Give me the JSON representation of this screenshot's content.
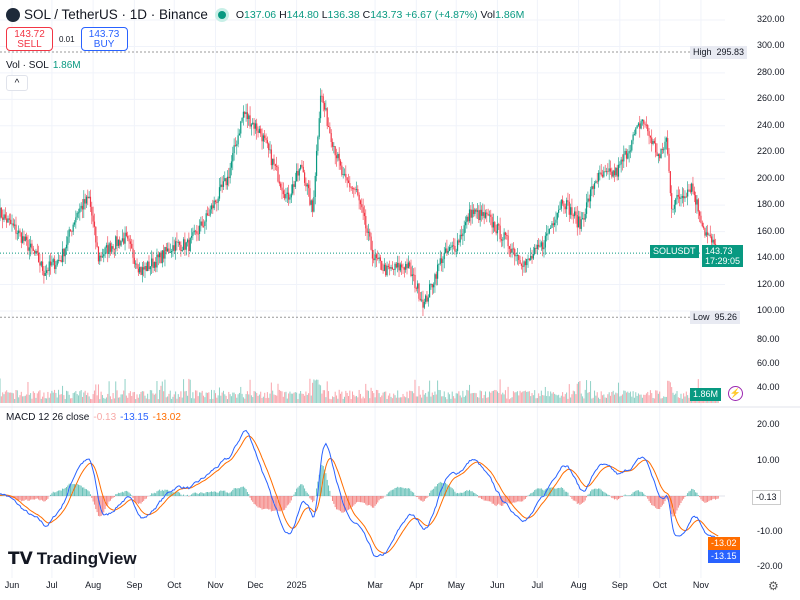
{
  "header": {
    "symbol": "SOL / TetherUS · 1D · Binance",
    "open_label": "O",
    "open": "137.06",
    "high_label": "H",
    "high": "144.80",
    "low_label": "L",
    "low": "136.38",
    "close_label": "C",
    "close": "143.73",
    "change": "+6.67 (+4.87%)",
    "vol_label": "Vol",
    "vol": "1.86M"
  },
  "trade": {
    "sell_price": "143.72",
    "sell_label": "SELL",
    "spread": "0.01",
    "buy_price": "143.73",
    "buy_label": "BUY"
  },
  "volume": {
    "label": "Vol · SOL",
    "value": "1.86M",
    "badge": "1.86M"
  },
  "macd": {
    "label": "MACD 12 26 close",
    "hist": "-0.13",
    "macd": "-13.15",
    "signal": "-13.02"
  },
  "price_tags": {
    "high_label": "High",
    "high": "295.83",
    "low_label": "Low",
    "low": "95.26",
    "symbol": "SOLUSDT",
    "last": "143.73",
    "countdown": "17:29:05"
  },
  "price_axis": [
    "320.00",
    "300.00",
    "280.00",
    "260.00",
    "240.00",
    "220.00",
    "200.00",
    "180.00",
    "160.00",
    "140.00",
    "120.00",
    "100.00"
  ],
  "volume_axis": [
    "80.00",
    "60.00",
    "40.00"
  ],
  "macd_axis": [
    "20.00",
    "10.00",
    "-10.00",
    "-20.00"
  ],
  "time_axis": [
    [
      "2024-06-01",
      "Jun"
    ],
    [
      "2024-07-01",
      "Jul"
    ],
    [
      "2024-08-01",
      "Aug"
    ],
    [
      "2024-09-01",
      "Sep"
    ],
    [
      "2024-10-01",
      "Oct"
    ],
    [
      "2024-11-01",
      "Nov"
    ],
    [
      "2024-12-01",
      "Dec"
    ],
    [
      "2025-01-01",
      "2025"
    ],
    [
      "2025-03-01",
      "Mar"
    ],
    [
      "2025-04-01",
      "Apr"
    ],
    [
      "2025-05-01",
      "May"
    ],
    [
      "2025-06-01",
      "Jun"
    ],
    [
      "2025-07-01",
      "Jul"
    ],
    [
      "2025-08-01",
      "Aug"
    ],
    [
      "2025-09-01",
      "Sep"
    ],
    [
      "2025-10-01",
      "Oct"
    ],
    [
      "2025-11-01",
      "Nov"
    ]
  ],
  "brand": "TradingView",
  "colors": {
    "up": "#089981",
    "down": "#f23645",
    "macd": "#2962ff",
    "signal": "#ff6d00"
  },
  "chart_data": {
    "type": "candlestick",
    "symbol": "SOLUSDT",
    "closes": [
      [
        "2024-05-22",
        175
      ],
      [
        "2024-06-05",
        160
      ],
      [
        "2024-06-20",
        140
      ],
      [
        "2024-06-25",
        130
      ],
      [
        "2024-07-08",
        140
      ],
      [
        "2024-07-20",
        175
      ],
      [
        "2024-07-29",
        185
      ],
      [
        "2024-08-05",
        140
      ],
      [
        "2024-08-15",
        150
      ],
      [
        "2024-08-25",
        155
      ],
      [
        "2024-09-06",
        130
      ],
      [
        "2024-09-20",
        140
      ],
      [
        "2024-10-01",
        150
      ],
      [
        "2024-10-12",
        150
      ],
      [
        "2024-10-25",
        170
      ],
      [
        "2024-11-10",
        200
      ],
      [
        "2024-11-22",
        250
      ],
      [
        "2024-12-05",
        235
      ],
      [
        "2024-12-15",
        210
      ],
      [
        "2024-12-25",
        185
      ],
      [
        "2025-01-05",
        210
      ],
      [
        "2025-01-13",
        175
      ],
      [
        "2025-01-19",
        265
      ],
      [
        "2025-01-25",
        240
      ],
      [
        "2025-02-05",
        200
      ],
      [
        "2025-02-15",
        190
      ],
      [
        "2025-02-28",
        140
      ],
      [
        "2025-03-10",
        130
      ],
      [
        "2025-03-25",
        135
      ],
      [
        "2025-04-07",
        105
      ],
      [
        "2025-04-20",
        140
      ],
      [
        "2025-05-01",
        150
      ],
      [
        "2025-05-12",
        175
      ],
      [
        "2025-05-25",
        170
      ],
      [
        "2025-06-10",
        150
      ],
      [
        "2025-06-22",
        135
      ],
      [
        "2025-07-05",
        150
      ],
      [
        "2025-07-20",
        185
      ],
      [
        "2025-08-02",
        165
      ],
      [
        "2025-08-14",
        200
      ],
      [
        "2025-08-30",
        205
      ],
      [
        "2025-09-18",
        245
      ],
      [
        "2025-10-01",
        215
      ],
      [
        "2025-10-06",
        230
      ],
      [
        "2025-10-10",
        180
      ],
      [
        "2025-10-25",
        195
      ],
      [
        "2025-11-04",
        160
      ],
      [
        "2025-11-14",
        143.73
      ]
    ],
    "ylim": [
      100,
      320
    ],
    "macd_ylim": [
      -20,
      20
    ]
  }
}
